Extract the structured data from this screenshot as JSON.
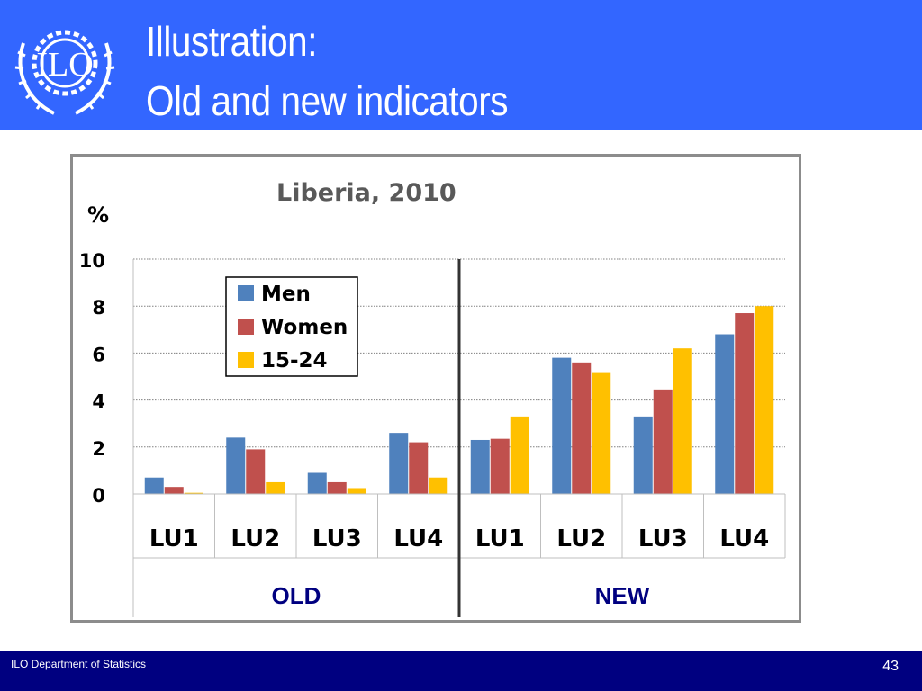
{
  "header": {
    "title_line_1": "Illustration:",
    "title_line_2": "Old and new indicators",
    "logo_text": "ILO"
  },
  "footer": {
    "department": "ILO Department of Statistics",
    "page_number": "43"
  },
  "colors": {
    "header_bg": "#3366ff",
    "footer_bg": "#000080",
    "men": "#4f81bd",
    "women": "#c0504d",
    "youth": "#ffc000"
  },
  "chart_data": {
    "type": "bar",
    "title": "Liberia, 2010",
    "ylabel": "%",
    "ylim": [
      0,
      10
    ],
    "yticks": [
      0,
      2,
      4,
      6,
      8,
      10
    ],
    "grid": true,
    "legend_position": "top-left",
    "categories": [
      "LU1",
      "LU2",
      "LU3",
      "LU4",
      "LU1",
      "LU2",
      "LU3",
      "LU4"
    ],
    "groups": [
      {
        "label": "OLD",
        "categories": [
          0,
          1,
          2,
          3
        ]
      },
      {
        "label": "NEW",
        "categories": [
          4,
          5,
          6,
          7
        ]
      }
    ],
    "series": [
      {
        "name": "Men",
        "color": "#4f81bd",
        "values": [
          0.7,
          2.4,
          0.9,
          2.6,
          2.3,
          5.8,
          3.3,
          6.8
        ]
      },
      {
        "name": "Women",
        "color": "#c0504d",
        "values": [
          0.3,
          1.9,
          0.5,
          2.2,
          2.35,
          5.6,
          4.45,
          7.7
        ]
      },
      {
        "name": "15-24",
        "color": "#ffc000",
        "values": [
          0.05,
          0.5,
          0.25,
          0.7,
          3.3,
          5.15,
          6.2,
          8.0
        ]
      }
    ]
  }
}
